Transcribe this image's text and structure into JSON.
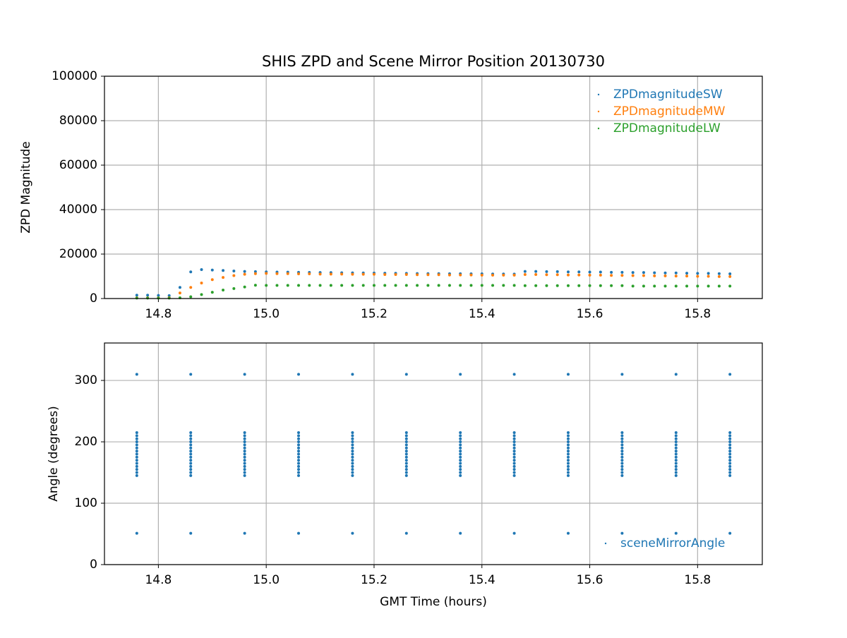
{
  "chart_data": [
    {
      "type": "scatter",
      "title": "SHIS ZPD and Scene Mirror Position 20130730",
      "y_label": "ZPD Magnitude",
      "x": [
        14.76,
        14.78,
        14.8,
        14.82,
        14.84,
        14.86,
        14.88,
        14.9,
        14.92,
        14.94,
        14.96,
        14.98,
        15.0,
        15.02,
        15.04,
        15.06,
        15.08,
        15.1,
        15.12,
        15.14,
        15.16,
        15.18,
        15.2,
        15.22,
        15.24,
        15.26,
        15.28,
        15.3,
        15.32,
        15.34,
        15.36,
        15.38,
        15.4,
        15.42,
        15.44,
        15.46,
        15.48,
        15.5,
        15.52,
        15.54,
        15.56,
        15.58,
        15.6,
        15.62,
        15.64,
        15.66,
        15.68,
        15.7,
        15.72,
        15.74,
        15.76,
        15.78,
        15.8,
        15.82,
        15.84,
        15.86
      ],
      "series": [
        {
          "name": "ZPDmagnitudeSW",
          "color": "#1f77b4",
          "values": [
            1500,
            1500,
            1400,
            1300,
            5000,
            12000,
            13000,
            12800,
            12600,
            12400,
            12200,
            12100,
            12000,
            11900,
            11850,
            11800,
            11750,
            11700,
            11650,
            11600,
            11550,
            11500,
            11450,
            11400,
            11350,
            11300,
            11250,
            11200,
            11200,
            11150,
            11150,
            11100,
            11100,
            11050,
            11050,
            11000,
            12200,
            12200,
            12100,
            12100,
            12000,
            12000,
            11900,
            11900,
            11800,
            11800,
            11700,
            11700,
            11600,
            11500,
            11500,
            11400,
            11300,
            11300,
            11200,
            11100
          ]
        },
        {
          "name": "ZPDmagnitudeMW",
          "color": "#ff7f0e",
          "values": [
            300,
            300,
            300,
            400,
            2500,
            5000,
            7000,
            8500,
            9500,
            10300,
            10900,
            11200,
            11300,
            11200,
            11200,
            11100,
            11100,
            11000,
            11000,
            11000,
            10900,
            10900,
            10900,
            10800,
            10800,
            10800,
            10700,
            10700,
            10700,
            10600,
            10600,
            10600,
            10500,
            10500,
            10500,
            10500,
            10800,
            10800,
            10700,
            10700,
            10600,
            10600,
            10500,
            10500,
            10400,
            10400,
            10300,
            10300,
            10200,
            10200,
            10100,
            10100,
            10000,
            10000,
            9900,
            9900
          ]
        },
        {
          "name": "ZPDmagnitudeLW",
          "color": "#2ca02c",
          "values": [
            200,
            200,
            200,
            200,
            300,
            800,
            1800,
            2800,
            3800,
            4500,
            5200,
            6000,
            5900,
            5900,
            5900,
            5900,
            5900,
            5900,
            5900,
            5900,
            5900,
            5900,
            5900,
            5900,
            5900,
            5900,
            5900,
            5900,
            5900,
            5900,
            5900,
            5900,
            5900,
            5900,
            5900,
            5900,
            5800,
            5800,
            5800,
            5800,
            5800,
            5800,
            5800,
            5800,
            5800,
            5800,
            5600,
            5600,
            5600,
            5600,
            5600,
            5600,
            5600,
            5600,
            5600,
            5600
          ]
        }
      ],
      "xlim": [
        14.7,
        15.92
      ],
      "ylim": [
        0,
        100000
      ],
      "xticks": [
        14.8,
        {
          "value": 15,
          "label": "15.0"
        },
        15.2,
        15.4,
        15.6,
        15.8
      ],
      "yticks": [
        0,
        20000,
        40000,
        60000,
        80000,
        100000
      ],
      "grid": true,
      "legend": "upper right"
    },
    {
      "type": "scatter",
      "x_label": "GMT Time (hours)",
      "y_label": "Angle (degrees)",
      "x": [
        14.76,
        14.86,
        14.96,
        15.06,
        15.16,
        15.26,
        15.36,
        15.46,
        15.56,
        15.66,
        15.76,
        15.86
      ],
      "series": [
        {
          "name": "sceneMirrorAngle",
          "color": "#1f77b4",
          "values": [
            [
              51,
              145,
              150,
              155,
              160,
              165,
              170,
              175,
              180,
              185,
              190,
              195,
              200,
              205,
              210,
              215,
              310
            ],
            [
              51,
              145,
              150,
              155,
              160,
              165,
              170,
              175,
              180,
              185,
              190,
              195,
              200,
              205,
              210,
              215,
              310
            ],
            [
              51,
              145,
              150,
              155,
              160,
              165,
              170,
              175,
              180,
              185,
              190,
              195,
              200,
              205,
              210,
              215,
              310
            ],
            [
              51,
              145,
              150,
              155,
              160,
              165,
              170,
              175,
              180,
              185,
              190,
              195,
              200,
              205,
              210,
              215,
              310
            ],
            [
              51,
              145,
              150,
              155,
              160,
              165,
              170,
              175,
              180,
              185,
              190,
              195,
              200,
              205,
              210,
              215,
              310
            ],
            [
              51,
              145,
              150,
              155,
              160,
              165,
              170,
              175,
              180,
              185,
              190,
              195,
              200,
              205,
              210,
              215,
              310
            ],
            [
              51,
              145,
              150,
              155,
              160,
              165,
              170,
              175,
              180,
              185,
              190,
              195,
              200,
              205,
              210,
              215,
              310
            ],
            [
              51,
              145,
              150,
              155,
              160,
              165,
              170,
              175,
              180,
              185,
              190,
              195,
              200,
              205,
              210,
              215,
              310
            ],
            [
              51,
              145,
              150,
              155,
              160,
              165,
              170,
              175,
              180,
              185,
              190,
              195,
              200,
              205,
              210,
              215,
              310
            ],
            [
              51,
              145,
              150,
              155,
              160,
              165,
              170,
              175,
              180,
              185,
              190,
              195,
              200,
              205,
              210,
              215,
              310
            ],
            [
              51,
              145,
              150,
              155,
              160,
              165,
              170,
              175,
              180,
              185,
              190,
              195,
              200,
              205,
              210,
              215,
              310
            ],
            [
              51,
              145,
              150,
              155,
              160,
              165,
              170,
              175,
              180,
              185,
              190,
              195,
              200,
              205,
              210,
              215,
              310
            ]
          ]
        }
      ],
      "xlim": [
        14.7,
        15.92
      ],
      "ylim": [
        0,
        361
      ],
      "xticks": [
        14.8,
        {
          "value": 15,
          "label": "15.0"
        },
        15.2,
        15.4,
        15.6,
        15.8
      ],
      "yticks": [
        0,
        100,
        200,
        300
      ],
      "grid": true,
      "legend": "lower right"
    }
  ]
}
